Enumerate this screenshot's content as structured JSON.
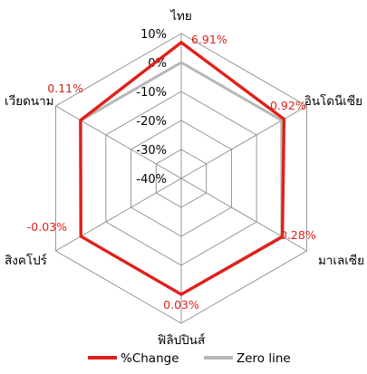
{
  "chart_data": {
    "type": "radar",
    "categories": [
      "ไทย",
      "อินโดนีเซีย",
      "มาเลเซีย",
      "ฟิลิปปินส์",
      "สิงคโปร์",
      "เวียดนาม"
    ],
    "ticks": [
      "10%",
      "0%",
      "-10%",
      "-20%",
      "-30%",
      "-40%"
    ],
    "tick_values": [
      10,
      0,
      -10,
      -20,
      -30,
      -40
    ],
    "rlim": [
      -40,
      10
    ],
    "series": [
      {
        "name": "%Change",
        "values": [
          6.91,
          0.92,
          0.28,
          0.03,
          -0.03,
          0.11
        ],
        "labels": [
          "6.91%",
          "0.92%",
          "0.28%",
          "0.03%",
          "-0.03%",
          "0.11%"
        ],
        "color": "#e0201b"
      },
      {
        "name": "Zero line",
        "values": [
          0,
          0,
          0,
          0,
          0,
          0
        ],
        "color": "#b7b7b7"
      }
    ],
    "grid": true,
    "legend_position": "bottom"
  }
}
